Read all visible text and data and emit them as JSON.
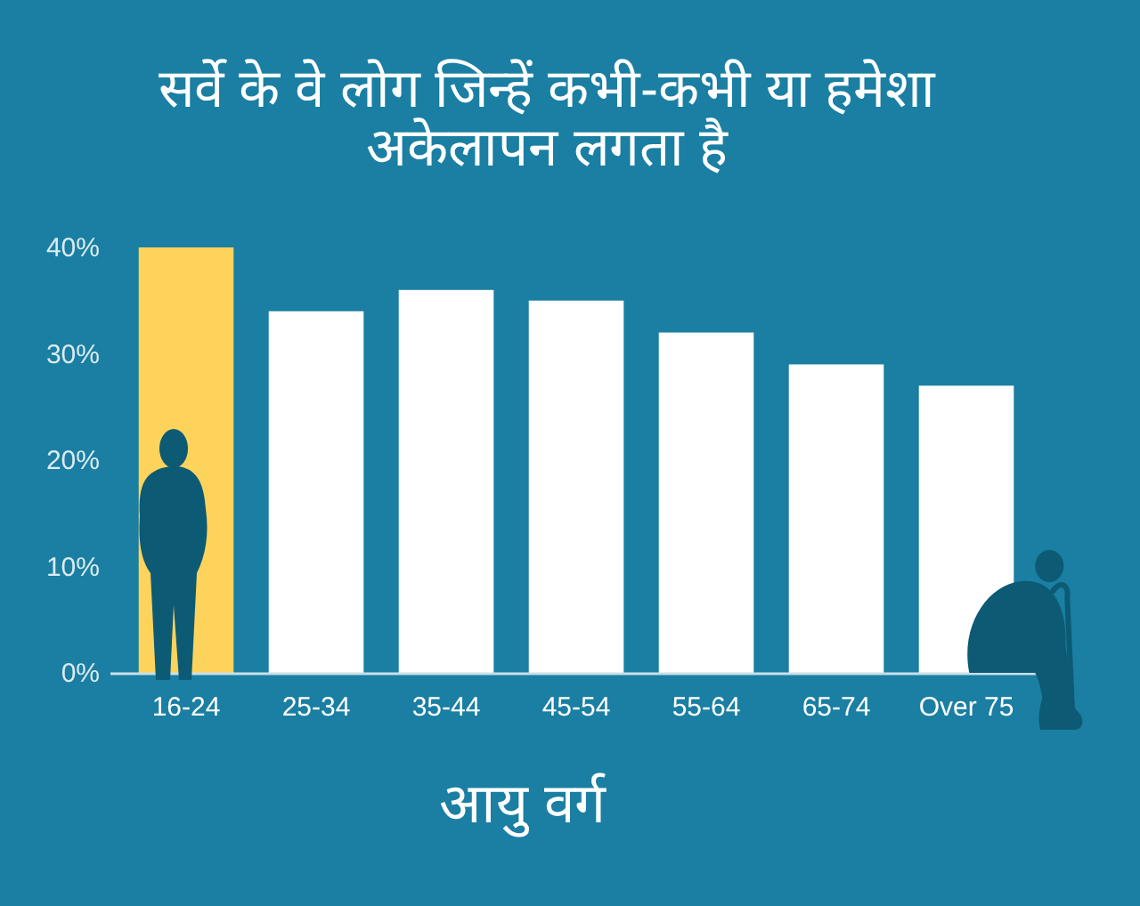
{
  "chart_data": {
    "type": "bar",
    "title": "सर्वे के वे लोग जिन्हें कभी-कभी या हमेशा अकेलापन लगता है",
    "xlabel": "आयु वर्ग",
    "categories": [
      "16-24",
      "25-34",
      "35-44",
      "45-54",
      "55-64",
      "65-74",
      "Over 75"
    ],
    "values": [
      40,
      34,
      36,
      35,
      32,
      29,
      27
    ],
    "colors": [
      "#fdd35c",
      "#ffffff",
      "#ffffff",
      "#ffffff",
      "#ffffff",
      "#ffffff",
      "#ffffff"
    ],
    "ylim": [
      0,
      40
    ],
    "yticks": [
      {
        "value": 0,
        "label": "0%"
      },
      {
        "value": 10,
        "label": "10%"
      },
      {
        "value": 20,
        "label": "20%"
      },
      {
        "value": 30,
        "label": "30%"
      },
      {
        "value": 40,
        "label": "40%"
      }
    ]
  }
}
